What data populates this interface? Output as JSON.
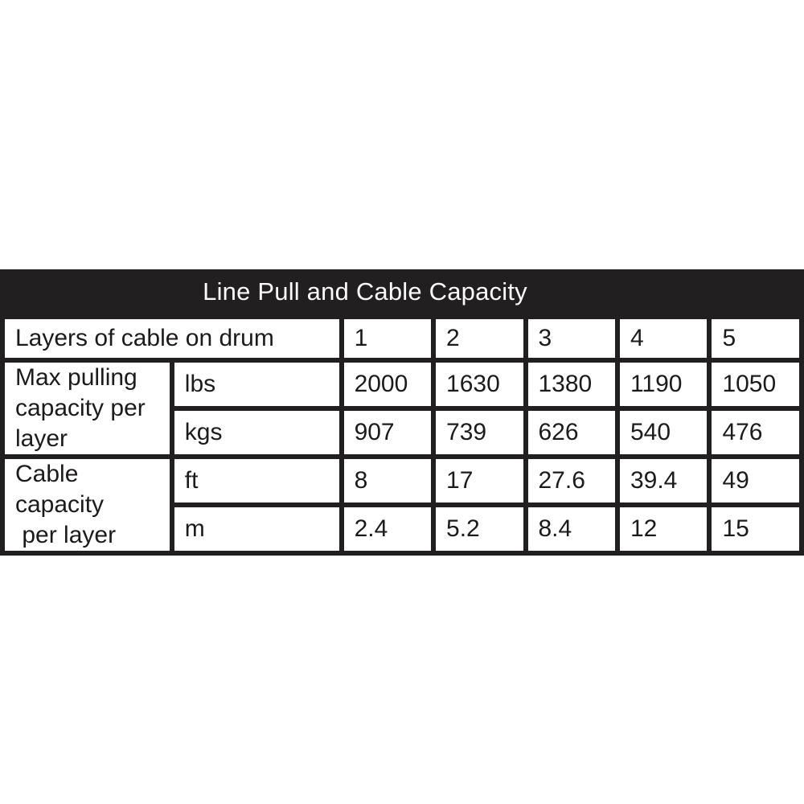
{
  "title": "Line Pull and Cable Capacity",
  "colors": {
    "table_background_black": "#221f20",
    "cell_background_white": "#ffffff",
    "title_text_white": "#fafafa",
    "cell_text_black": "#1c1a1b"
  },
  "table": {
    "header_row": {
      "label": "Layers of cable on drum",
      "values": [
        "1",
        "2",
        "3",
        "4",
        "5"
      ]
    },
    "sections": [
      {
        "label": "Max pulling capacity per\nlayer",
        "rows": [
          {
            "unit": "lbs",
            "values": [
              "2000",
              "1630",
              "1380",
              "1190",
              "1050"
            ]
          },
          {
            "unit": "kgs",
            "values": [
              "907",
              "739",
              "626",
              "540",
              "476"
            ]
          }
        ]
      },
      {
        "label": "Cable capacity\n per layer",
        "rows": [
          {
            "unit": "ft",
            "values": [
              "8",
              "17",
              "27.6",
              "39.4",
              "49"
            ]
          },
          {
            "unit": "m",
            "values": [
              "2.4",
              "5.2",
              "8.4",
              "12",
              "15"
            ]
          }
        ]
      }
    ]
  }
}
